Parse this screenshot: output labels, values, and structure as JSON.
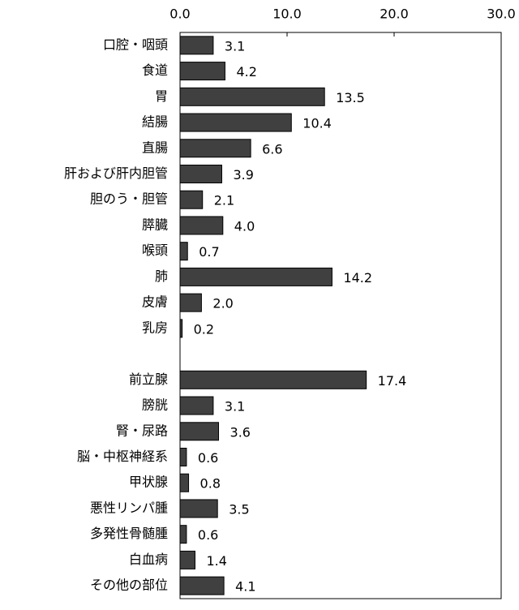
{
  "chart_data": {
    "type": "bar",
    "orientation": "horizontal",
    "categories": [
      "口腔・咽頭",
      "食道",
      "胃",
      "結腸",
      "直腸",
      "肝および肝内胆管",
      "胆のう・胆管",
      "膵臓",
      "喉頭",
      "肺",
      "皮膚",
      "乳房",
      null,
      "前立腺",
      "膀胱",
      "腎・尿路",
      "脳・中枢神経系",
      "甲状腺",
      "悪性リンパ腫",
      "多発性骨髄腫",
      "白血病",
      "その他の部位"
    ],
    "values": [
      3.1,
      4.2,
      13.5,
      10.4,
      6.6,
      3.9,
      2.1,
      4.0,
      0.7,
      14.2,
      2.0,
      0.2,
      null,
      17.4,
      3.1,
      3.6,
      0.6,
      0.8,
      3.5,
      0.6,
      1.4,
      4.1
    ],
    "value_labels": [
      "3.1",
      "4.2",
      "13.5",
      "10.4",
      "6.6",
      "3.9",
      "2.1",
      "4.0",
      "0.7",
      "14.2",
      "2.0",
      "0.2",
      null,
      "17.4",
      "3.1",
      "3.6",
      "0.6",
      "0.8",
      "3.5",
      "0.6",
      "1.4",
      "4.1"
    ],
    "color": "#404040",
    "xlim": [
      0,
      30
    ],
    "xticks": [
      {
        "value": 0,
        "label": "0.0"
      },
      {
        "value": 10,
        "label": "10.0"
      },
      {
        "value": 20,
        "label": "20.0"
      },
      {
        "value": 30,
        "label": "30.0"
      }
    ]
  }
}
